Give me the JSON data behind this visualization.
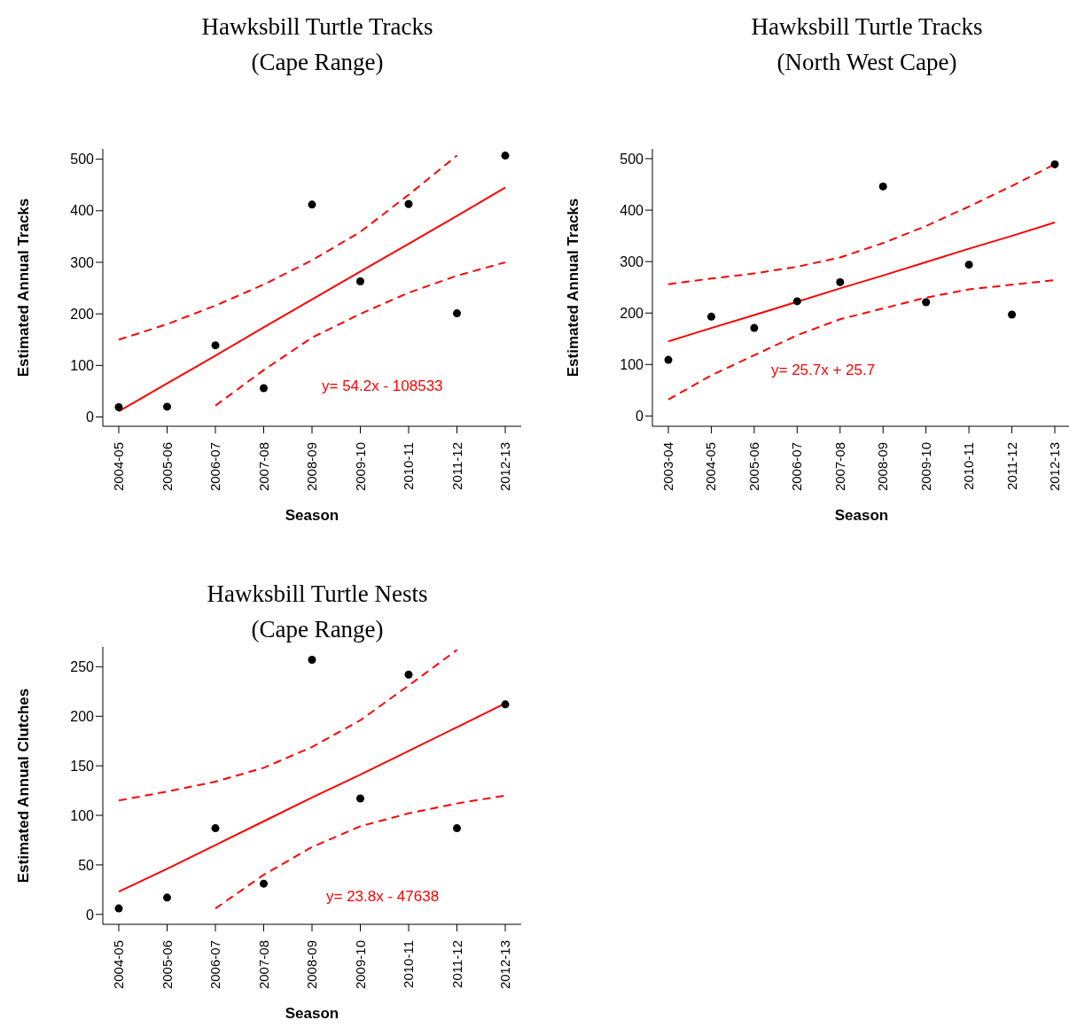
{
  "chart_data": [
    {
      "type": "scatter",
      "title": "Hawksbill Turtle Tracks\n(Cape Range)",
      "xlabel": "Season",
      "ylabel": "Estimated Annual Tracks",
      "categories": [
        "2004-05",
        "2005-06",
        "2006-07",
        "2007-08",
        "2008-09",
        "2009-10",
        "2010-11",
        "2011-12",
        "2012-13"
      ],
      "ylim": [
        -18,
        520
      ],
      "yticks": [
        0,
        100,
        200,
        300,
        400,
        500
      ],
      "annotations": [
        "y= 54.2x - 108533"
      ],
      "series": [
        {
          "marker": "circle",
          "color": "#000000",
          "values": [
            19,
            20,
            139,
            56,
            412,
            263,
            413,
            201,
            507
          ]
        },
        {
          "type": "line",
          "marker": "none",
          "line_style": "solid",
          "color": "#ff0000",
          "values": [
            11,
            65,
            119,
            174,
            228,
            282,
            336,
            390,
            445
          ]
        },
        {
          "type": "line",
          "marker": "none",
          "line_style": "dashed",
          "color": "#ff0000",
          "values": [
            150,
            180,
            216,
            257,
            304,
            359,
            431,
            507,
            null
          ]
        },
        {
          "type": "line",
          "marker": "none",
          "line_style": "dashed",
          "color": "#ff0000",
          "values": [
            null,
            null,
            22,
            91,
            154,
            200,
            241,
            274,
            300
          ]
        }
      ]
    },
    {
      "type": "scatter",
      "title": "Hawksbill Turtle Tracks\n(North West Cape)",
      "xlabel": "Season",
      "ylabel": "Estimated Annual Tracks",
      "categories": [
        "2003-04",
        "2004-05",
        "2005-06",
        "2006-07",
        "2007-08",
        "2008-09",
        "2009-10",
        "2010-11",
        "2011-12",
        "2012-13"
      ],
      "ylim": [
        -20,
        519
      ],
      "yticks": [
        0,
        100,
        200,
        300,
        400,
        500
      ],
      "annotations": [
        "y= 25.7x + 25.7"
      ],
      "series": [
        {
          "marker": "circle",
          "color": "#000000",
          "values": [
            109,
            193,
            171,
            223,
            260,
            446,
            221,
            294,
            197,
            489
          ]
        },
        {
          "type": "line",
          "marker": "none",
          "line_style": "solid",
          "color": "#ff0000",
          "values": [
            145,
            171,
            196,
            222,
            248,
            273,
            299,
            325,
            350,
            376
          ]
        },
        {
          "type": "line",
          "marker": "none",
          "line_style": "dashed",
          "color": "#ff0000",
          "values": [
            256,
            267,
            277,
            290,
            308,
            336,
            369,
            407,
            447,
            489
          ]
        },
        {
          "type": "line",
          "marker": "none",
          "line_style": "dashed",
          "color": "#ff0000",
          "values": [
            32,
            79,
            118,
            157,
            188,
            209,
            230,
            246,
            255,
            264
          ]
        }
      ]
    },
    {
      "type": "scatter",
      "title": "Hawksbill Turtle Nests\n(Cape Range)",
      "xlabel": "Season",
      "ylabel": "Estimated Annual Clutches",
      "categories": [
        "2004-05",
        "2005-06",
        "2006-07",
        "2007-08",
        "2008-09",
        "2009-10",
        "2010-11",
        "2011-12",
        "2012-13"
      ],
      "ylim": [
        -10,
        270
      ],
      "yticks": [
        0,
        50,
        100,
        150,
        200,
        250
      ],
      "annotations": [
        "y= 23.8x - 47638"
      ],
      "series": [
        {
          "marker": "circle",
          "color": "#000000",
          "values": [
            6,
            17,
            87,
            31,
            257,
            117,
            242,
            87,
            212
          ]
        },
        {
          "type": "line",
          "marker": "none",
          "line_style": "solid",
          "color": "#ff0000",
          "values": [
            23,
            46,
            70,
            94,
            118,
            141,
            165,
            189,
            213
          ]
        },
        {
          "type": "line",
          "marker": "none",
          "line_style": "dashed",
          "color": "#ff0000",
          "values": [
            115,
            124,
            134,
            148,
            169,
            196,
            231,
            267,
            null
          ]
        },
        {
          "type": "line",
          "marker": "none",
          "line_style": "dashed",
          "color": "#ff0000",
          "values": [
            null,
            null,
            6,
            40,
            68,
            89,
            102,
            112,
            120
          ]
        }
      ]
    }
  ]
}
